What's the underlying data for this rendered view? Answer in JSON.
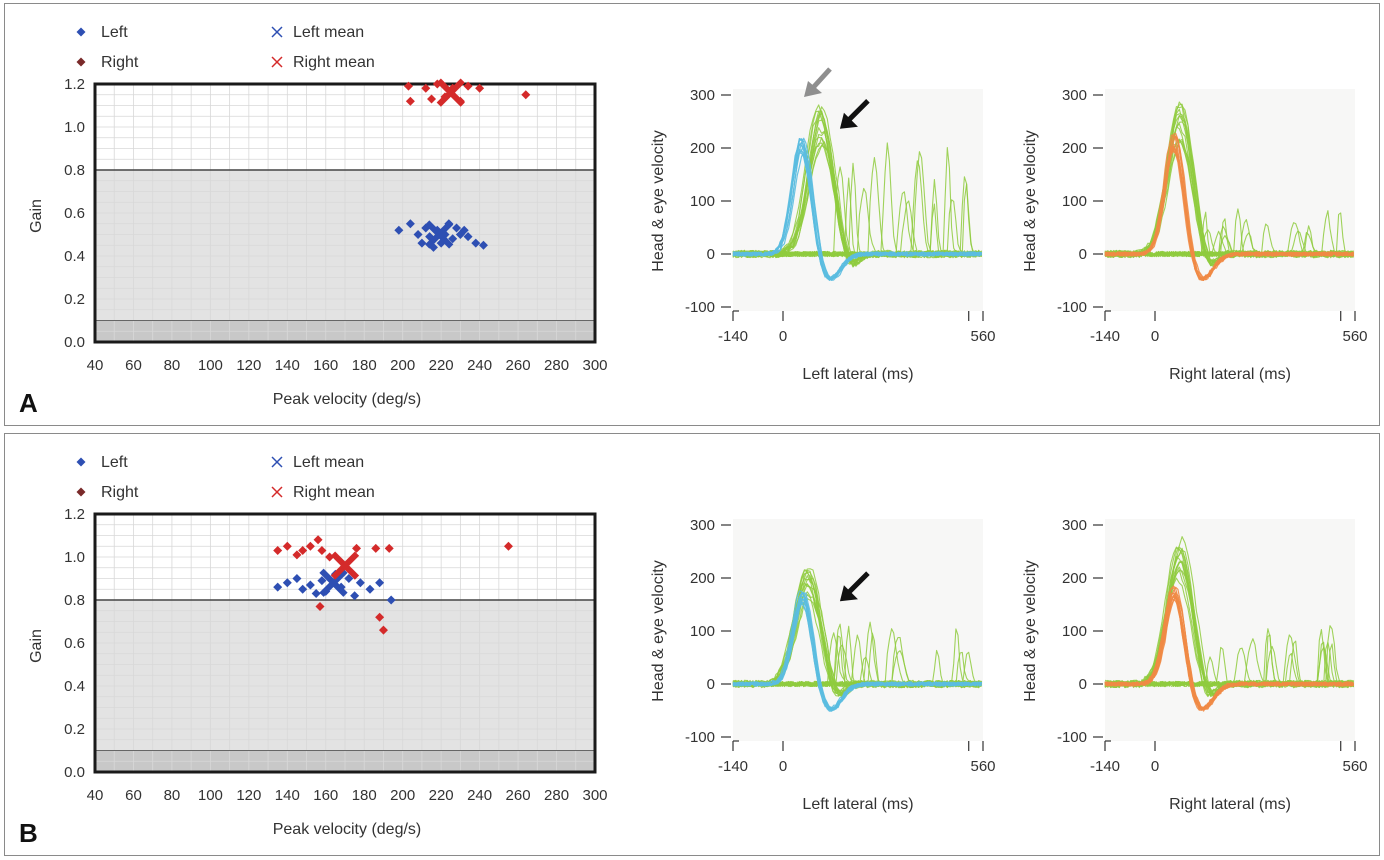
{
  "legend": {
    "left": "Left",
    "right": "Right",
    "left_mean": "Left mean",
    "right_mean": "Right mean"
  },
  "colors": {
    "left": "#2e4fb3",
    "right": "#d42a2a",
    "head": "#8fcb3e",
    "eye_left": "#5bbde0",
    "eye_right": "#ef8a45",
    "gray_arrow": "#8f8f8f",
    "black_arrow": "#111111"
  },
  "chart_data": [
    {
      "panel": "A",
      "type": "scatter",
      "xlabel": "Peak velocity (deg/s)",
      "ylabel": "Gain",
      "xlim": [
        40,
        300
      ],
      "ylim": [
        0,
        1.2
      ],
      "xticks": [
        "40",
        "60",
        "80",
        "100",
        "120",
        "140",
        "160",
        "180",
        "200",
        "220",
        "240",
        "260",
        "280",
        "300"
      ],
      "yticks": [
        "0.0",
        "0.2",
        "0.4",
        "0.6",
        "0.8",
        "1.0",
        "1.2"
      ],
      "normal_gain_threshold": 0.8,
      "lower_band": 0.1,
      "series": [
        {
          "name": "Left",
          "points": [
            [
              198,
              0.52
            ],
            [
              204,
              0.55
            ],
            [
              208,
              0.5
            ],
            [
              210,
              0.46
            ],
            [
              212,
              0.53
            ],
            [
              214,
              0.49
            ],
            [
              216,
              0.44
            ],
            [
              218,
              0.52
            ],
            [
              220,
              0.46
            ],
            [
              222,
              0.5
            ],
            [
              224,
              0.55
            ],
            [
              226,
              0.48
            ],
            [
              228,
              0.53
            ],
            [
              230,
              0.5
            ],
            [
              232,
              0.52
            ],
            [
              234,
              0.49
            ],
            [
              238,
              0.46
            ],
            [
              242,
              0.45
            ]
          ]
        },
        {
          "name": "Right",
          "points": [
            [
              203,
              1.19
            ],
            [
              204,
              1.12
            ],
            [
              212,
              1.18
            ],
            [
              215,
              1.13
            ],
            [
              218,
              1.2
            ],
            [
              222,
              1.14
            ],
            [
              226,
              1.18
            ],
            [
              230,
              1.12
            ],
            [
              234,
              1.19
            ],
            [
              240,
              1.18
            ],
            [
              264,
              1.15
            ]
          ]
        },
        {
          "name": "Left mean",
          "points": [
            [
              219,
              0.5
            ]
          ]
        },
        {
          "name": "Right mean",
          "points": [
            [
              225,
              1.16
            ]
          ]
        }
      ]
    },
    {
      "panel": "A",
      "type": "line",
      "xlabel": "Left lateral (ms)",
      "ylabel": "Head & eye velocity",
      "xlim": [
        -140,
        560
      ],
      "ylim": [
        -100,
        300
      ],
      "xticks": [
        "-140",
        "0",
        "560"
      ],
      "yticks": [
        "300",
        "200",
        "100",
        "0",
        "-100"
      ],
      "eye_peak": 225,
      "annotations": [
        "gray-arrow",
        "black-arrow"
      ]
    },
    {
      "panel": "A",
      "type": "line",
      "xlabel": "Right lateral (ms)",
      "ylabel": "Head & eye velocity",
      "xlim": [
        -140,
        560
      ],
      "ylim": [
        -100,
        300
      ],
      "xticks": [
        "-140",
        "0",
        "560"
      ],
      "yticks": [
        "300",
        "200",
        "100",
        "0",
        "-100"
      ],
      "eye_peak": 230
    },
    {
      "panel": "B",
      "type": "scatter",
      "xlabel": "Peak velocity (deg/s)",
      "ylabel": "Gain",
      "xlim": [
        40,
        300
      ],
      "ylim": [
        0,
        1.2
      ],
      "xticks": [
        "40",
        "60",
        "80",
        "100",
        "120",
        "140",
        "160",
        "180",
        "200",
        "220",
        "240",
        "260",
        "280",
        "300"
      ],
      "yticks": [
        "0.0",
        "0.2",
        "0.4",
        "0.6",
        "0.8",
        "1.0",
        "1.2"
      ],
      "normal_gain_threshold": 0.8,
      "lower_band": 0.1,
      "series": [
        {
          "name": "Left",
          "points": [
            [
              135,
              0.86
            ],
            [
              140,
              0.88
            ],
            [
              145,
              0.9
            ],
            [
              148,
              0.85
            ],
            [
              152,
              0.87
            ],
            [
              155,
              0.83
            ],
            [
              158,
              0.89
            ],
            [
              160,
              0.84
            ],
            [
              165,
              0.92
            ],
            [
              168,
              0.86
            ],
            [
              172,
              0.9
            ],
            [
              175,
              0.82
            ],
            [
              178,
              0.88
            ],
            [
              183,
              0.85
            ],
            [
              188,
              0.88
            ],
            [
              194,
              0.8
            ]
          ]
        },
        {
          "name": "Right",
          "points": [
            [
              135,
              1.03
            ],
            [
              140,
              1.05
            ],
            [
              145,
              1.01
            ],
            [
              148,
              1.03
            ],
            [
              152,
              1.05
            ],
            [
              156,
              1.08
            ],
            [
              158,
              1.03
            ],
            [
              162,
              1.0
            ],
            [
              157,
              0.77
            ],
            [
              176,
              1.04
            ],
            [
              186,
              1.04
            ],
            [
              188,
              0.72
            ],
            [
              190,
              0.66
            ],
            [
              193,
              1.04
            ],
            [
              255,
              1.05
            ]
          ]
        },
        {
          "name": "Left mean",
          "points": [
            [
              164,
              0.88
            ]
          ]
        },
        {
          "name": "Right mean",
          "points": [
            [
              170,
              0.96
            ]
          ]
        }
      ]
    },
    {
      "panel": "B",
      "type": "line",
      "xlabel": "Left lateral (ms)",
      "ylabel": "Head & eye velocity",
      "xlim": [
        -140,
        560
      ],
      "ylim": [
        -100,
        300
      ],
      "xticks": [
        "-140",
        "0",
        "560"
      ],
      "yticks": [
        "300",
        "200",
        "100",
        "0",
        "-100"
      ],
      "eye_peak": 180,
      "annotations": [
        "black-arrow"
      ]
    },
    {
      "panel": "B",
      "type": "line",
      "xlabel": "Right lateral (ms)",
      "ylabel": "Head & eye velocity",
      "xlim": [
        -140,
        560
      ],
      "ylim": [
        -100,
        300
      ],
      "xticks": [
        "-140",
        "0",
        "560"
      ],
      "yticks": [
        "300",
        "200",
        "100",
        "0",
        "-100"
      ],
      "eye_peak": 190
    }
  ]
}
